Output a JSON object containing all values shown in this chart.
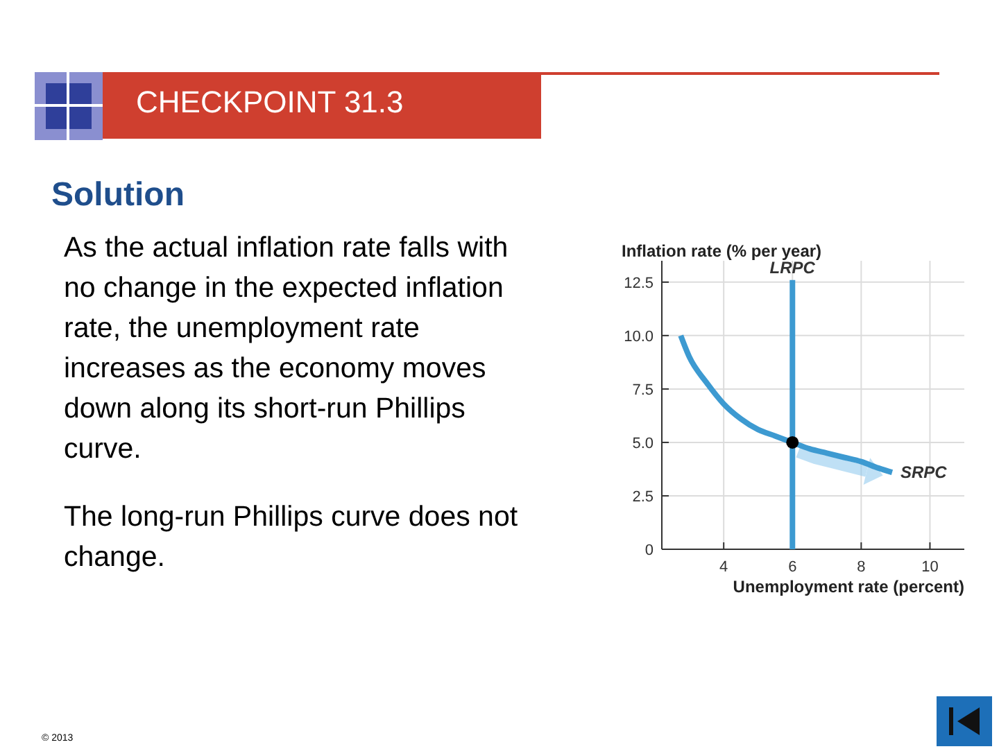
{
  "chart_data": {
    "type": "line",
    "title": "CHECKPOINT 31.3",
    "subtitle": "Solution",
    "xlabel": "Unemployment rate (percent)",
    "ylabel": "Inflation rate (% per year)",
    "annotations": [
      "As the actual inflation rate falls with no change in the expected inflation rate, the unemployment rate increases as the economy moves down along its short-run Phillips curve.",
      "The long-run Phillips curve does not change.",
      "© 2013"
    ],
    "xlim": [
      2.2,
      11
    ],
    "xticks": [
      4,
      6,
      8,
      10
    ],
    "ylim": [
      0,
      13.5
    ],
    "yticks": [
      {
        "value": 0,
        "label": "0"
      },
      2.5,
      {
        "value": 5,
        "label": "5.0"
      },
      7.5,
      {
        "value": 10,
        "label": "10.0"
      },
      12.5
    ],
    "grid": true,
    "series": [
      {
        "name": "SRPC",
        "color": "#3d9ad1",
        "x": [
          2.75,
          3,
          3.5,
          4,
          4.5,
          5,
          5.5,
          6,
          6.5,
          7,
          7.5,
          8,
          8.5,
          8.9
        ],
        "values": [
          10,
          9,
          7.8,
          6.8,
          6.1,
          5.6,
          5.3,
          5,
          4.7,
          4.5,
          4.3,
          4.1,
          3.8,
          3.6
        ]
      },
      {
        "name": "LRPC",
        "color": "#3d9ad1",
        "x": [
          6,
          6
        ],
        "values": [
          0,
          12.6
        ]
      },
      {
        "type": "scatter",
        "color": "#000000",
        "marker": "circle",
        "x": [
          6
        ],
        "values": [
          5
        ]
      }
    ]
  }
}
